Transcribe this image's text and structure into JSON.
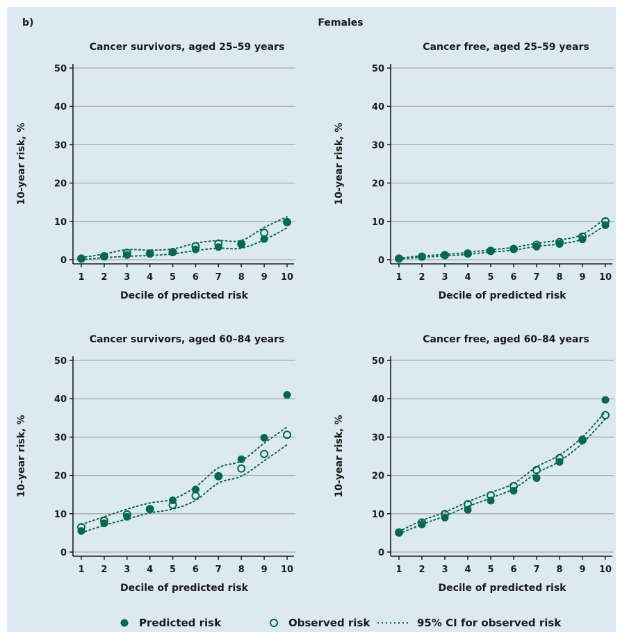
{
  "figure": {
    "panel_label": "b)",
    "title": "Females",
    "legend": {
      "predicted": "Predicted risk",
      "observed": "Observed risk",
      "ci": "95% CI for observed risk"
    },
    "colors": {
      "marker": "#006b48",
      "grid": "#a9a9a9",
      "background": "#dde9f1"
    }
  },
  "chart_data": [
    {
      "type": "scatter",
      "title": "Cancer survivors, aged 25–59 years",
      "xlabel": "Decile of predicted risk",
      "ylabel": "10-year risk, %",
      "x": [
        1,
        2,
        3,
        4,
        5,
        6,
        7,
        8,
        9,
        10
      ],
      "xlim": [
        1,
        10
      ],
      "ylim": [
        0,
        50
      ],
      "yticks": [
        0,
        10,
        20,
        30,
        40,
        50
      ],
      "series": [
        {
          "name": "Predicted risk",
          "values": [
            0.3,
            0.8,
            1.2,
            1.6,
            2.0,
            2.7,
            3.3,
            4.0,
            5.4,
            9.8
          ]
        },
        {
          "name": "Observed risk",
          "values": [
            0.3,
            0.9,
            1.8,
            1.6,
            2.0,
            3.5,
            4.2,
            4.1,
            7.0,
            9.8
          ]
        },
        {
          "name": "95% CI lower",
          "values": [
            0.0,
            0.5,
            0.9,
            1.1,
            1.5,
            2.4,
            3.0,
            3.0,
            5.2,
            8.3
          ]
        },
        {
          "name": "95% CI upper",
          "values": [
            0.5,
            1.5,
            2.6,
            2.5,
            2.8,
            4.3,
            5.0,
            5.0,
            8.4,
            11.2
          ]
        }
      ]
    },
    {
      "type": "scatter",
      "title": "Cancer free, aged 25–59 years",
      "xlabel": "Decile of predicted risk",
      "ylabel": "10-year risk, %",
      "x": [
        1,
        2,
        3,
        4,
        5,
        6,
        7,
        8,
        9,
        10
      ],
      "xlim": [
        1,
        10
      ],
      "ylim": [
        0,
        50
      ],
      "yticks": [
        0,
        10,
        20,
        30,
        40,
        50
      ],
      "series": [
        {
          "name": "Predicted risk",
          "values": [
            0.3,
            0.8,
            1.2,
            1.6,
            2.2,
            2.8,
            3.4,
            4.1,
            5.3,
            9.0
          ]
        },
        {
          "name": "Observed risk",
          "values": [
            0.3,
            0.8,
            1.2,
            1.6,
            2.3,
            2.8,
            3.9,
            4.6,
            6.0,
            10.0
          ]
        },
        {
          "name": "95% CI lower",
          "values": [
            0.2,
            0.6,
            1.0,
            1.4,
            2.0,
            2.5,
            3.5,
            4.1,
            5.4,
            9.0
          ]
        },
        {
          "name": "95% CI upper",
          "values": [
            0.4,
            1.0,
            1.4,
            1.9,
            2.6,
            3.2,
            4.3,
            5.1,
            6.6,
            10.8
          ]
        }
      ]
    },
    {
      "type": "scatter",
      "title": "Cancer survivors, aged 60–84 years",
      "xlabel": "Decile of predicted risk",
      "ylabel": "10-year risk, %",
      "x": [
        1,
        2,
        3,
        4,
        5,
        6,
        7,
        8,
        9,
        10
      ],
      "xlim": [
        1,
        10
      ],
      "ylim": [
        0,
        50
      ],
      "yticks": [
        0,
        10,
        20,
        30,
        40,
        50
      ],
      "series": [
        {
          "name": "Predicted risk",
          "values": [
            5.5,
            7.5,
            9.2,
            11.2,
            13.5,
            16.3,
            19.8,
            24.2,
            29.8,
            41.0
          ]
        },
        {
          "name": "Observed risk",
          "values": [
            6.5,
            8.2,
            9.8,
            11.2,
            12.3,
            14.7,
            19.8,
            21.8,
            25.6,
            30.6
          ]
        },
        {
          "name": "95% CI lower",
          "values": [
            5.0,
            7.0,
            8.6,
            10.2,
            11.2,
            13.5,
            18.0,
            19.8,
            23.8,
            28.0
          ]
        },
        {
          "name": "95% CI upper",
          "values": [
            7.2,
            9.2,
            11.2,
            12.8,
            13.8,
            17.0,
            22.0,
            23.8,
            28.4,
            32.6
          ]
        }
      ]
    },
    {
      "type": "scatter",
      "title": "Cancer free, aged 60–84 years",
      "xlabel": "Decile of predicted risk",
      "ylabel": "10-year risk, %",
      "x": [
        1,
        2,
        3,
        4,
        5,
        6,
        7,
        8,
        9,
        10
      ],
      "xlim": [
        1,
        10
      ],
      "ylim": [
        0,
        50
      ],
      "yticks": [
        0,
        10,
        20,
        30,
        40,
        50
      ],
      "series": [
        {
          "name": "Predicted risk",
          "values": [
            5.1,
            7.2,
            9.0,
            11.0,
            13.4,
            16.0,
            19.3,
            23.5,
            29.4,
            39.7
          ]
        },
        {
          "name": "Observed risk",
          "values": [
            5.1,
            7.7,
            9.9,
            12.5,
            14.8,
            17.2,
            21.4,
            24.5,
            29.2,
            35.7
          ]
        },
        {
          "name": "95% CI lower",
          "values": [
            4.8,
            7.2,
            9.4,
            11.9,
            14.1,
            16.5,
            20.6,
            23.7,
            28.4,
            34.8
          ]
        },
        {
          "name": "95% CI upper",
          "values": [
            5.4,
            8.2,
            10.4,
            13.1,
            15.5,
            17.9,
            22.2,
            25.3,
            30.0,
            36.6
          ]
        }
      ]
    }
  ]
}
